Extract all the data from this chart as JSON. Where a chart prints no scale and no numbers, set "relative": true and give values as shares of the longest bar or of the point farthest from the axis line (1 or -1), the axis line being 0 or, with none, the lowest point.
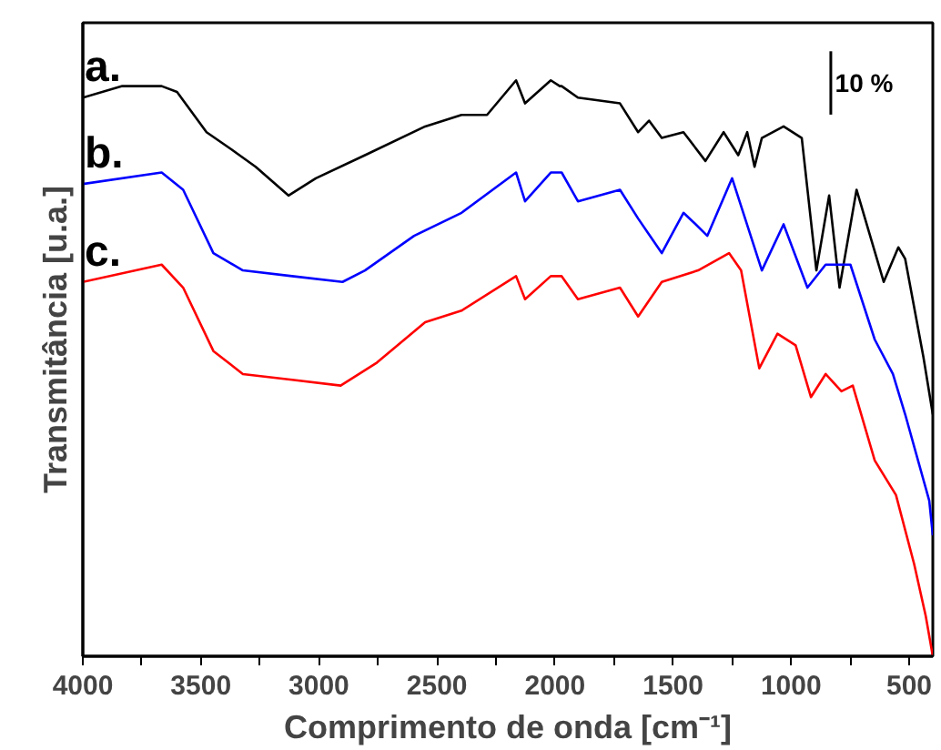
{
  "chart_data": {
    "type": "line",
    "relative": true,
    "xlabel": "Comprimento de onda [cm⁻¹]",
    "ylabel": "Transmitância [u.a.]",
    "xlim": [
      4000,
      400
    ],
    "xticks": [
      4000,
      {
        "value": 3750,
        "label": null
      },
      3500,
      {
        "value": 3250,
        "label": null
      },
      3000,
      {
        "value": 2750,
        "label": null
      },
      2500,
      {
        "value": 2250,
        "label": null
      },
      2000,
      {
        "value": 1750,
        "label": null
      },
      1500,
      {
        "value": 1250,
        "label": null
      },
      1000,
      {
        "value": 750,
        "label": null
      },
      500
    ],
    "tick_labels": "x",
    "grid": false,
    "marker": "none",
    "line_style": "solid",
    "annotations": [
      "10 %"
    ],
    "series": [
      {
        "name": "a.",
        "color": "#000000",
        "x": [
          4000,
          3833,
          3666,
          3601,
          3476,
          3370,
          3268,
          3129,
          3013,
          2805,
          2550,
          2396,
          2288,
          2165,
          2127,
          2018,
          1980,
          1972,
          1903,
          1725,
          1648,
          1602,
          1548,
          1456,
          1363,
          1286,
          1224,
          1186,
          1155,
          1124,
          1032,
          955,
          893,
          839,
          795,
          723,
          608,
          546,
          517,
          440,
          400
        ],
        "values": [
          0.97,
          0.99,
          0.99,
          0.98,
          0.91,
          0.88,
          0.85,
          0.8,
          0.83,
          0.87,
          0.92,
          0.94,
          0.94,
          1.0,
          0.96,
          1.0,
          0.99,
          0.99,
          0.97,
          0.96,
          0.91,
          0.93,
          0.9,
          0.91,
          0.86,
          0.91,
          0.87,
          0.91,
          0.85,
          0.9,
          0.92,
          0.9,
          0.67,
          0.8,
          0.64,
          0.81,
          0.65,
          0.71,
          0.69,
          0.52,
          0.42
        ]
      },
      {
        "name": "b.",
        "color": "#0000ff",
        "x": [
          4000,
          3666,
          3575,
          3447,
          3322,
          3114,
          2900,
          2805,
          2597,
          2396,
          2165,
          2127,
          2018,
          1972,
          1903,
          1725,
          1648,
          1548,
          1456,
          1404,
          1355,
          1250,
          1124,
          1032,
          931,
          854,
          749,
          646,
          569,
          517,
          415,
          400
        ],
        "values": [
          0.82,
          0.84,
          0.81,
          0.7,
          0.67,
          0.66,
          0.65,
          0.67,
          0.73,
          0.77,
          0.84,
          0.79,
          0.84,
          0.84,
          0.79,
          0.81,
          0.76,
          0.7,
          0.77,
          0.75,
          0.73,
          0.83,
          0.67,
          0.75,
          0.64,
          0.68,
          0.68,
          0.55,
          0.49,
          0.42,
          0.27,
          0.21
        ]
      },
      {
        "name": "c.",
        "color": "#ff0000",
        "x": [
          4000,
          3666,
          3575,
          3447,
          3322,
          3114,
          2908,
          2754,
          2550,
          2396,
          2165,
          2127,
          2018,
          1972,
          1903,
          1725,
          1648,
          1548,
          1394,
          1263,
          1212,
          1135,
          1058,
          981,
          916,
          854,
          787,
          739,
          646,
          556,
          479,
          430,
          400
        ],
        "values": [
          0.65,
          0.68,
          0.64,
          0.53,
          0.49,
          0.48,
          0.47,
          0.51,
          0.58,
          0.6,
          0.66,
          0.62,
          0.66,
          0.66,
          0.62,
          0.64,
          0.59,
          0.65,
          0.67,
          0.7,
          0.67,
          0.5,
          0.56,
          0.54,
          0.45,
          0.49,
          0.46,
          0.47,
          0.34,
          0.28,
          0.16,
          0.07,
          0.0
        ]
      }
    ]
  }
}
